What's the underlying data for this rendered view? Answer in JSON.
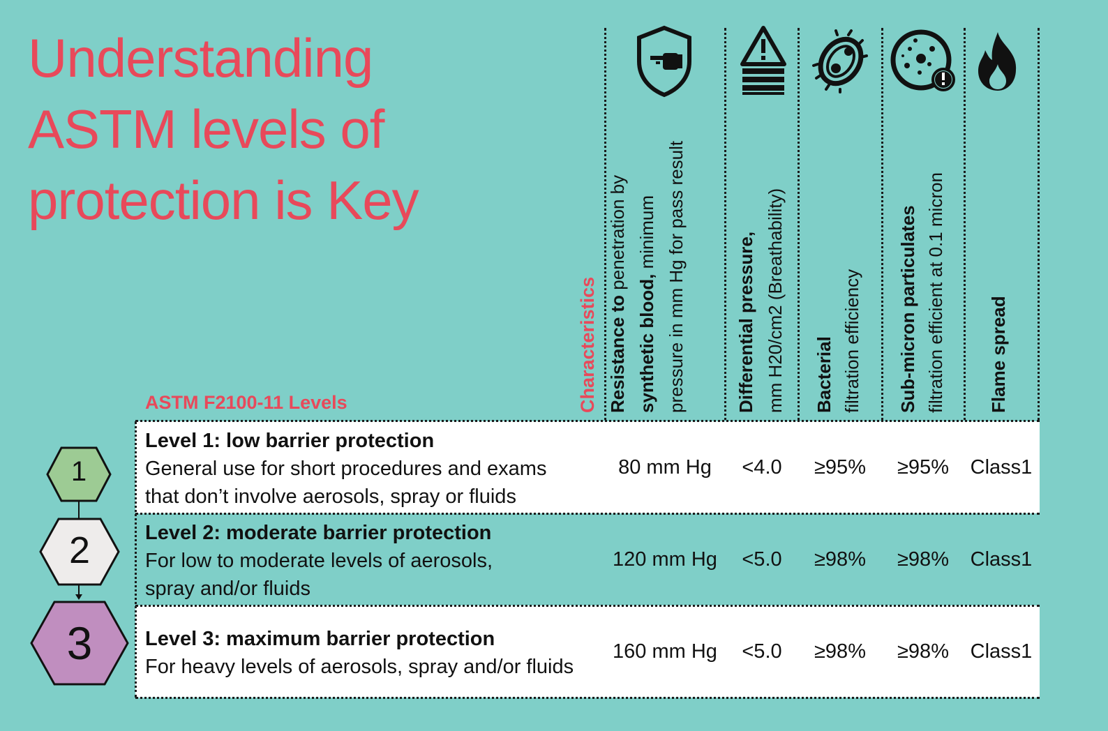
{
  "title": {
    "line1": "Understanding",
    "line2": "ASTM levels of",
    "line3": "protection is Key"
  },
  "characteristics_label": "Characteristics",
  "levels_heading": "ASTM F2100-11 Levels",
  "columns": [
    {
      "icon": "hand-shield-icon",
      "bold1": "Resistance to",
      "normal1": " penetration by",
      "bold2": "synthetic blood,",
      "normal2": " minimum",
      "normal3": "pressure in mm Hg for pass result"
    },
    {
      "icon": "warning-layers-icon",
      "bold1": "Differential pressure,",
      "normal2": "mm H20/cm2 (Breathability)"
    },
    {
      "icon": "bacteria-icon",
      "bold1": "Bacterial",
      "normal2": "filtration efficiency"
    },
    {
      "icon": "particulate-icon",
      "bold1": "Sub-micron particulates",
      "normal2": "filtration efficient at 0.1 micron"
    },
    {
      "icon": "flame-icon",
      "bold1": "Flame spread"
    }
  ],
  "rows": [
    {
      "number": "1",
      "title": "Level 1: low barrier protection",
      "desc1": "General use for short procedures and exams",
      "desc2": "that don’t involve aerosols, spray or fluids",
      "blood": "80 mm Hg",
      "pressure": "<4.0",
      "bacterial": "≥95%",
      "submicron": "≥95%",
      "flame": "Class1",
      "hex_color": "#9dcb94"
    },
    {
      "number": "2",
      "title": "Level 2: moderate barrier protection",
      "desc1": "For low to moderate levels of aerosols,",
      "desc2": "spray and/or fluids",
      "blood": "120 mm Hg",
      "pressure": "<5.0",
      "bacterial": "≥98%",
      "submicron": "≥98%",
      "flame": "Class1",
      "hex_color": "#eeeceb"
    },
    {
      "number": "3",
      "title": "Level 3: maximum barrier protection",
      "desc1": "For heavy levels of aerosols, spray and/or fluids",
      "desc2": "",
      "blood": "160 mm Hg",
      "pressure": "<5.0",
      "bacterial": "≥98%",
      "submicron": "≥98%",
      "flame": "Class1",
      "hex_color": "#c08ebf"
    }
  ],
  "colors": {
    "background": "#7fcfc8",
    "accent": "#e8495a",
    "text": "#111111"
  }
}
